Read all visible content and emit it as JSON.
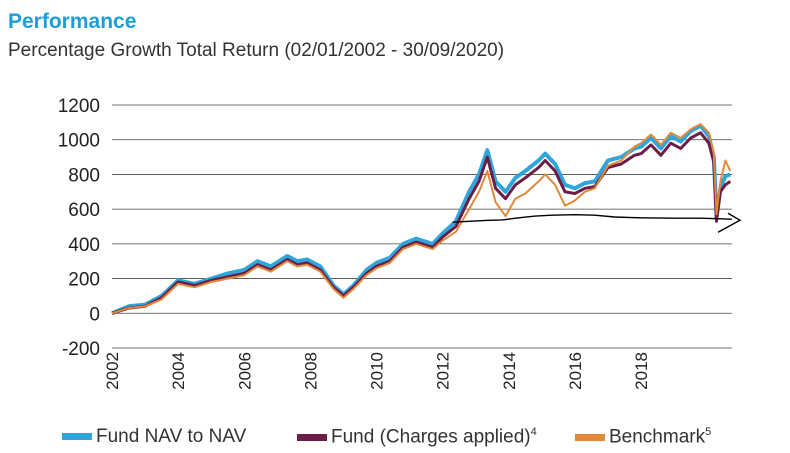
{
  "header": {
    "title": "Performance",
    "subtitle": "Percentage Growth Total Return (02/01/2002 - 30/09/2020)"
  },
  "colors": {
    "nav": "#2ea6dc",
    "charges": "#6b1d48",
    "benchmark": "#e0893a",
    "annotation": "#000000",
    "title": "#1a9fd8"
  },
  "chart_data": {
    "type": "line",
    "title": "Performance",
    "subtitle": "Percentage Growth Total Return (02/01/2002 - 30/09/2020)",
    "xlabel": "",
    "ylabel": "",
    "xlim": [
      2002.0,
      2020.75
    ],
    "ylim": [
      -200,
      1200
    ],
    "yticks": [
      -200,
      0,
      200,
      400,
      600,
      800,
      1000,
      1200
    ],
    "xticks": [
      2002,
      2004,
      2006,
      2008,
      2010,
      2012,
      2014,
      2016,
      2018
    ],
    "grid": "horizontal",
    "legend": "bottom",
    "series": [
      {
        "name": "Fund NAV to NAV",
        "x": [
          2002.0,
          2002.5,
          2003.0,
          2003.5,
          2004.0,
          2004.5,
          2005.0,
          2005.5,
          2006.0,
          2006.4,
          2006.8,
          2007.3,
          2007.6,
          2007.9,
          2008.3,
          2008.7,
          2009.0,
          2009.3,
          2009.7,
          2010.0,
          2010.4,
          2010.8,
          2011.2,
          2011.7,
          2012.0,
          2012.4,
          2012.8,
          2013.1,
          2013.35,
          2013.6,
          2013.9,
          2014.2,
          2014.5,
          2014.9,
          2015.1,
          2015.4,
          2015.7,
          2016.0,
          2016.3,
          2016.6,
          2017.0,
          2017.4,
          2017.8,
          2018.0,
          2018.3,
          2018.6,
          2018.9,
          2019.2,
          2019.5,
          2019.8,
          2020.05,
          2020.2,
          2020.28,
          2020.4,
          2020.55,
          2020.7
        ],
        "y": [
          0,
          40,
          50,
          100,
          190,
          170,
          200,
          230,
          250,
          300,
          270,
          330,
          300,
          310,
          270,
          160,
          110,
          160,
          250,
          290,
          320,
          400,
          430,
          400,
          460,
          530,
          700,
          800,
          940,
          760,
          700,
          780,
          820,
          880,
          920,
          860,
          740,
          720,
          750,
          760,
          880,
          900,
          950,
          960,
          1010,
          950,
          1020,
          990,
          1050,
          1080,
          1020,
          900,
          560,
          720,
          790,
          800
        ]
      },
      {
        "name": "Fund (Charges applied)",
        "x": [
          2002.0,
          2002.5,
          2003.0,
          2003.5,
          2004.0,
          2004.5,
          2005.0,
          2005.5,
          2006.0,
          2006.4,
          2006.8,
          2007.3,
          2007.6,
          2007.9,
          2008.3,
          2008.7,
          2009.0,
          2009.3,
          2009.7,
          2010.0,
          2010.4,
          2010.8,
          2011.2,
          2011.7,
          2012.0,
          2012.4,
          2012.8,
          2013.1,
          2013.35,
          2013.6,
          2013.9,
          2014.2,
          2014.5,
          2014.9,
          2015.1,
          2015.4,
          2015.7,
          2016.0,
          2016.3,
          2016.6,
          2017.0,
          2017.4,
          2017.8,
          2018.0,
          2018.3,
          2018.6,
          2018.9,
          2019.2,
          2019.5,
          2019.8,
          2020.05,
          2020.2,
          2020.28,
          2020.4,
          2020.55,
          2020.7
        ],
        "y": [
          0,
          30,
          40,
          90,
          180,
          160,
          190,
          210,
          230,
          280,
          250,
          310,
          280,
          290,
          250,
          150,
          100,
          150,
          230,
          270,
          300,
          380,
          410,
          380,
          440,
          500,
          660,
          760,
          900,
          720,
          660,
          740,
          780,
          840,
          880,
          820,
          700,
          690,
          720,
          730,
          840,
          860,
          910,
          920,
          970,
          910,
          980,
          950,
          1010,
          1040,
          980,
          870,
          530,
          700,
          740,
          760
        ]
      },
      {
        "name": "Benchmark",
        "x": [
          2002.0,
          2002.5,
          2003.0,
          2003.5,
          2004.0,
          2004.5,
          2005.0,
          2005.5,
          2006.0,
          2006.4,
          2006.8,
          2007.3,
          2007.6,
          2007.9,
          2008.3,
          2008.7,
          2009.0,
          2009.3,
          2009.7,
          2010.0,
          2010.4,
          2010.8,
          2011.2,
          2011.7,
          2012.0,
          2012.4,
          2012.8,
          2013.1,
          2013.35,
          2013.6,
          2013.9,
          2014.2,
          2014.5,
          2014.9,
          2015.1,
          2015.4,
          2015.7,
          2016.0,
          2016.3,
          2016.6,
          2017.0,
          2017.4,
          2017.8,
          2018.0,
          2018.3,
          2018.6,
          2018.9,
          2019.2,
          2019.5,
          2019.8,
          2020.05,
          2020.2,
          2020.28,
          2020.4,
          2020.55,
          2020.7
        ],
        "y": [
          0,
          30,
          40,
          80,
          170,
          150,
          180,
          200,
          220,
          270,
          240,
          300,
          270,
          280,
          240,
          140,
          90,
          140,
          220,
          260,
          290,
          370,
          400,
          370,
          420,
          470,
          600,
          700,
          820,
          640,
          560,
          660,
          690,
          760,
          800,
          740,
          620,
          650,
          700,
          720,
          850,
          880,
          960,
          980,
          1030,
          970,
          1040,
          1010,
          1060,
          1090,
          1040,
          920,
          570,
          760,
          880,
          820
        ]
      }
    ],
    "annotation": {
      "x": [
        2012.3,
        2012.8,
        2013.3,
        2013.8,
        2014.3,
        2014.8,
        2015.3,
        2016.0,
        2016.6,
        2017.2,
        2018.0,
        2019.0,
        2019.8,
        2020.3,
        2020.75
      ],
      "y": [
        525,
        530,
        535,
        538,
        550,
        560,
        565,
        568,
        565,
        555,
        550,
        548,
        548,
        545,
        542
      ]
    }
  },
  "legend": {
    "nav_label": "Fund NAV to NAV",
    "charges_label": "Fund (Charges applied)",
    "charges_sup": "4",
    "benchmark_label": "Benchmark",
    "benchmark_sup": "5"
  }
}
